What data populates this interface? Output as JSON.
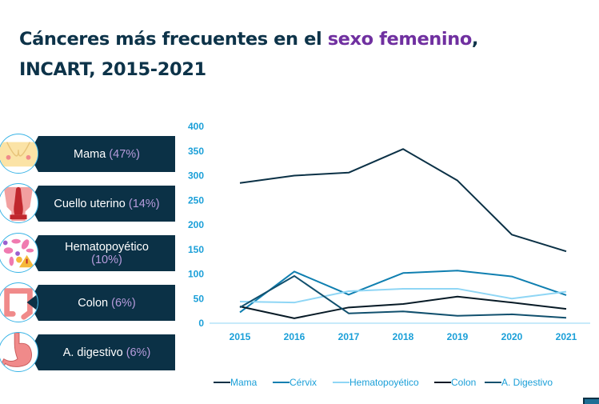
{
  "title": {
    "part1": "Cánceres más frecuentes en el ",
    "highlight": "sexo femenino",
    "part2": ",",
    "line2": "INCART, 2015-2021"
  },
  "categories": [
    {
      "name": "Mama",
      "pct": "(47%)",
      "icon": "breast-icon"
    },
    {
      "name": "Cuello uterino",
      "pct": "(14%)",
      "icon": "uterus-icon"
    },
    {
      "name": "Hematopoyético",
      "pct": "(10%)",
      "icon": "blood-cells-icon"
    },
    {
      "name": "Colon",
      "pct": "(6%)",
      "icon": "colon-icon"
    },
    {
      "name": "A. digestivo",
      "pct": "(6%)",
      "icon": "stomach-icon"
    }
  ],
  "chart_data": {
    "type": "line",
    "title": "",
    "xlabel": "",
    "ylabel": "",
    "x": [
      "2015",
      "2016",
      "2017",
      "2018",
      "2019",
      "2020",
      "2021"
    ],
    "ylim": [
      0,
      400
    ],
    "yticks": [
      0,
      50,
      100,
      150,
      200,
      250,
      300,
      350,
      400
    ],
    "grid": false,
    "legend_position": "bottom",
    "series": [
      {
        "name": "Mama",
        "color": "#0b3146",
        "values": [
          285,
          300,
          306,
          354,
          290,
          180,
          146
        ]
      },
      {
        "name": "Cérvix",
        "color": "#0f7fb0",
        "values": [
          22,
          105,
          58,
          102,
          107,
          95,
          57
        ]
      },
      {
        "name": "Hematopoyético",
        "color": "#8fd6f5",
        "values": [
          44,
          42,
          65,
          70,
          70,
          50,
          64
        ]
      },
      {
        "name": "Colon",
        "color": "#071a26",
        "values": [
          34,
          10,
          32,
          39,
          54,
          42,
          29
        ]
      },
      {
        "name": "A. Digestivo",
        "color": "#11506e",
        "values": [
          32,
          96,
          20,
          24,
          15,
          18,
          11
        ]
      }
    ]
  }
}
